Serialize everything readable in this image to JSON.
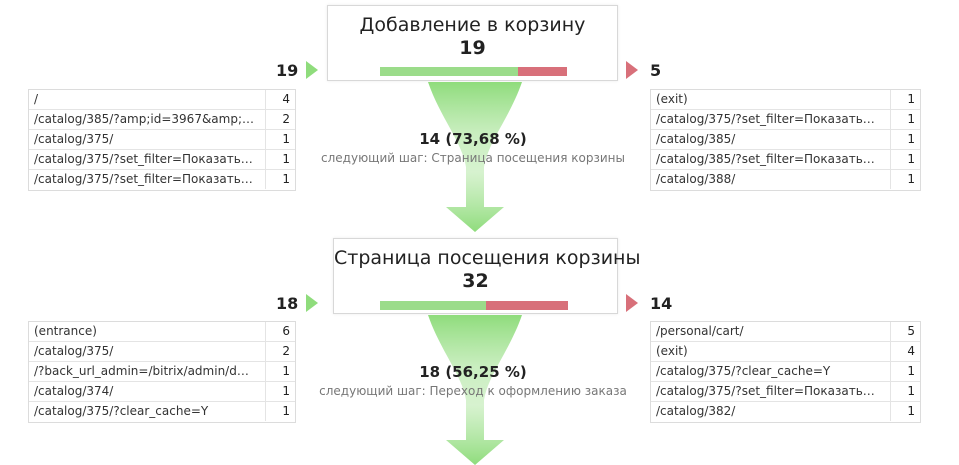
{
  "steps": [
    {
      "title": "Добавление в корзину",
      "count": "19",
      "entries": "19",
      "exits": "5",
      "conversion": 0.7368,
      "entry_sources": [
        {
          "label": "/",
          "count": "4"
        },
        {
          "label": "/catalog/385/?amp;id=3967&amp;PA...",
          "count": "2"
        },
        {
          "label": "/catalog/375/",
          "count": "1"
        },
        {
          "label": "/catalog/375/?set_filter=Показать&ar...",
          "count": "1"
        },
        {
          "label": "/catalog/375/?set_filter=Показать&ar...",
          "count": "1"
        }
      ],
      "exit_targets": [
        {
          "label": "(exit)",
          "count": "1"
        },
        {
          "label": "/catalog/375/?set_filter=Показать&arr...",
          "count": "1"
        },
        {
          "label": "/catalog/385/",
          "count": "1"
        },
        {
          "label": "/catalog/385/?set_filter=Показать&arr...",
          "count": "1"
        },
        {
          "label": "/catalog/388/",
          "count": "1"
        }
      ],
      "next": {
        "value": "14 (73,68 %)",
        "label": "следующий шаг: Страница посещения корзины"
      }
    },
    {
      "title": "Страница посещения корзины",
      "count": "32",
      "entries": "18",
      "exits": "14",
      "conversion": 0.5625,
      "entry_sources": [
        {
          "label": "(entrance)",
          "count": "6"
        },
        {
          "label": "/catalog/375/",
          "count": "2"
        },
        {
          "label": "/?back_url_admin=/bitrix/admin/dump...",
          "count": "1"
        },
        {
          "label": "/catalog/374/",
          "count": "1"
        },
        {
          "label": "/catalog/375/?clear_cache=Y",
          "count": "1"
        }
      ],
      "exit_targets": [
        {
          "label": "/personal/cart/",
          "count": "5"
        },
        {
          "label": "(exit)",
          "count": "4"
        },
        {
          "label": "/catalog/375/?clear_cache=Y",
          "count": "1"
        },
        {
          "label": "/catalog/375/?set_filter=Показать&arr...",
          "count": "1"
        },
        {
          "label": "/catalog/382/",
          "count": "1"
        }
      ],
      "next": {
        "value": "18 (56,25 %)",
        "label": "следующий шаг: Переход к оформлению заказа"
      }
    }
  ],
  "colors": {
    "continue": "#9bdc8a",
    "exit": "#d8707a",
    "funnel": "#8fdc7c"
  }
}
